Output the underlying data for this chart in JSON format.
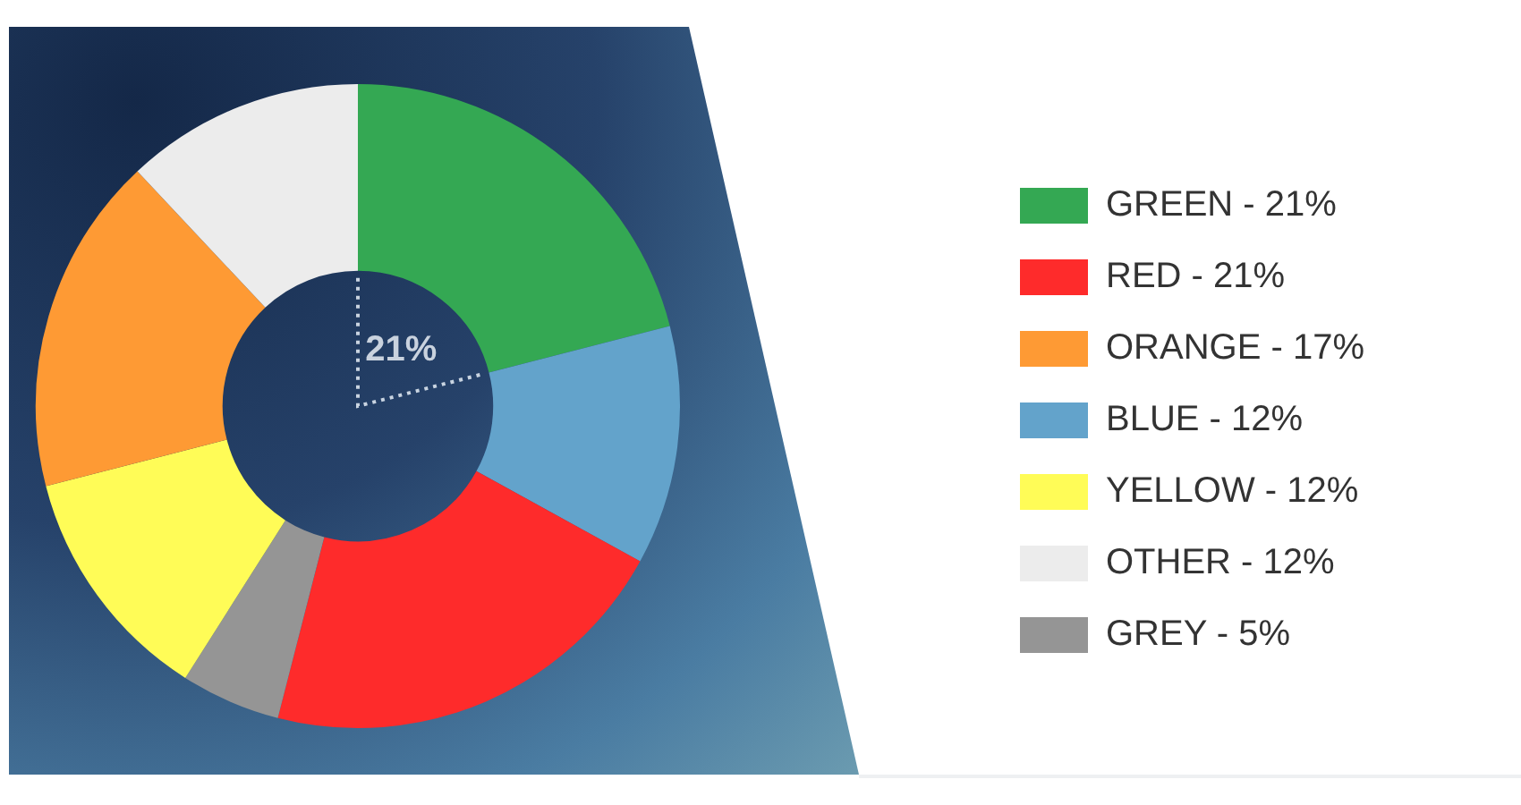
{
  "chart_data": {
    "type": "donut",
    "categories": [
      "GREEN - 21%",
      "BLUE - 12%",
      "RED - 21%",
      "GREY - 5%",
      "YELLOW - 12%",
      "ORANGE - 17%",
      "OTHER - 12%"
    ],
    "values": [
      21,
      12,
      21,
      5,
      12,
      17,
      12
    ],
    "colors": [
      "#34a853",
      "#63a3cb",
      "#fe2b2b",
      "#959595",
      "#fffc57",
      "#fe9a34",
      "#ececec"
    ],
    "annotations": [
      "21%"
    ],
    "legend": "right"
  }
}
